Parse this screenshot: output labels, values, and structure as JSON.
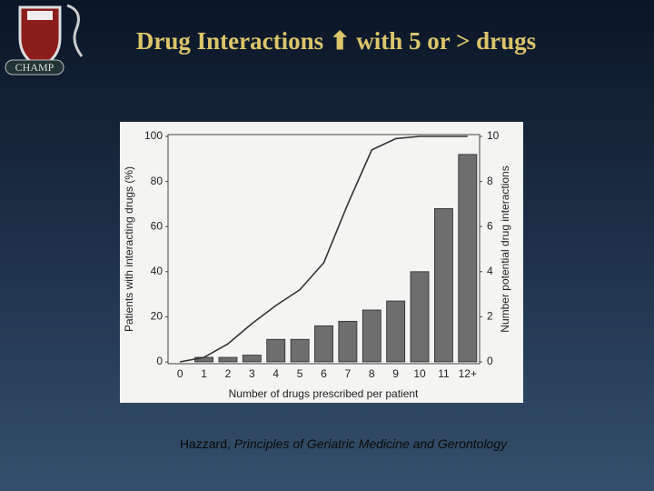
{
  "logo": {
    "text": "CHAMP"
  },
  "chart_data": {
    "type": "bar",
    "title": "Drug Interactions ⬆ with 5 or > drugs",
    "x_label": "Number of drugs prescribed per patient",
    "y_label": "Patients with interacting drugs (%)",
    "y2_label": "Number potential drug interactions",
    "categories": [
      "0",
      "1",
      "2",
      "3",
      "4",
      "5",
      "6",
      "7",
      "8",
      "9",
      "10",
      "11",
      "12+"
    ],
    "ylim": [
      0,
      100
    ],
    "yticks": [
      0,
      20,
      40,
      60,
      80,
      100
    ],
    "y2lim": [
      0,
      10
    ],
    "y2ticks": [
      0,
      2,
      4,
      6,
      8,
      10
    ],
    "series": [
      {
        "type": "bar",
        "axis": "y2",
        "color": "#6e6e6e",
        "values": [
          0,
          0.2,
          0.2,
          0.3,
          1.0,
          1.0,
          1.6,
          1.8,
          2.3,
          2.7,
          4.0,
          6.8,
          9.2
        ]
      },
      {
        "type": "line",
        "color": "#333333",
        "values": [
          0,
          2,
          8,
          17,
          25,
          32,
          44,
          70,
          94,
          99,
          100,
          100,
          100
        ]
      }
    ]
  },
  "citation": {
    "author": "Hazzard,",
    "work": "Principles of Geriatric Medicine and Gerontology"
  }
}
